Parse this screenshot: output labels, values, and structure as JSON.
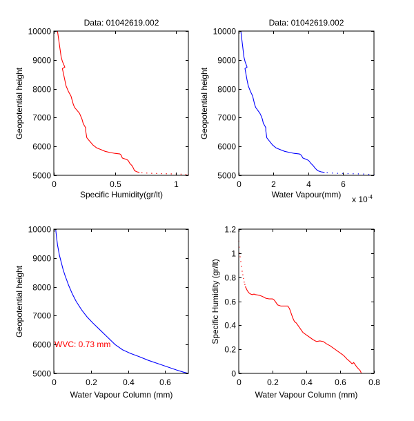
{
  "figure": {
    "background": "#ffffff"
  },
  "chart_data": [
    {
      "id": "top-left",
      "type": "line",
      "title": "Data: 01042619.002",
      "xlabel": "Specific Humidity(gr/lt)",
      "ylabel": "Geopotential height",
      "xlim": [
        0,
        1.1
      ],
      "ylim": [
        5000,
        10000
      ],
      "xticks": [
        0,
        0.5,
        1
      ],
      "xtick_labels": [
        "0",
        "0.5",
        "1"
      ],
      "yticks": [
        5000,
        6000,
        7000,
        8000,
        9000,
        10000
      ],
      "ytick_labels": [
        "5000",
        "6000",
        "7000",
        "8000",
        "9000",
        "10000"
      ],
      "x_exponent": "",
      "color": "#ff0000",
      "grid": false,
      "series": [
        {
          "name": "specific-humidity-profile",
          "x": [
            0.03,
            0.04,
            0.05,
            0.06,
            0.07,
            0.08,
            0.09,
            0.07,
            0.08,
            0.09,
            0.1,
            0.12,
            0.14,
            0.15,
            0.16,
            0.17,
            0.19,
            0.21,
            0.22,
            0.23,
            0.24,
            0.25,
            0.26,
            0.26,
            0.27,
            0.29,
            0.32,
            0.35,
            0.38,
            0.42,
            0.46,
            0.5,
            0.54,
            0.55,
            0.56,
            0.6,
            0.61,
            0.62,
            0.64,
            0.65,
            0.66,
            0.68,
            0.7
          ],
          "y": [
            10000,
            9700,
            9400,
            9100,
            8950,
            8850,
            8750,
            8700,
            8500,
            8300,
            8100,
            7900,
            7750,
            7600,
            7450,
            7350,
            7250,
            7150,
            7050,
            6950,
            6800,
            6720,
            6650,
            6550,
            6300,
            6200,
            6050,
            5950,
            5900,
            5830,
            5790,
            5760,
            5740,
            5700,
            5600,
            5540,
            5500,
            5420,
            5330,
            5250,
            5160,
            5120,
            5100
          ]
        },
        {
          "name": "specific-humidity-dotted-tail",
          "dotted": true,
          "x": [
            0.72,
            0.76,
            0.8,
            0.84,
            0.88,
            0.92,
            0.96,
            1.0,
            1.04,
            1.08,
            1.1
          ],
          "y": [
            5090,
            5080,
            5070,
            5065,
            5060,
            5055,
            5050,
            5045,
            5040,
            5030,
            5020
          ]
        }
      ]
    },
    {
      "id": "top-right",
      "type": "line",
      "title": "Data: 01042619.002",
      "xlabel": "Water Vapour(mm)",
      "ylabel": "Geopotential height",
      "xlim": [
        0,
        7.8
      ],
      "ylim": [
        5000,
        10000
      ],
      "xticks": [
        0,
        2,
        4,
        6
      ],
      "xtick_labels": [
        "0",
        "2",
        "4",
        "6"
      ],
      "yticks": [
        5000,
        6000,
        7000,
        8000,
        9000,
        10000
      ],
      "ytick_labels": [
        "5000",
        "6000",
        "7000",
        "8000",
        "9000",
        "10000"
      ],
      "x_exponent": "x 10",
      "x_exponent_power": "-4",
      "color": "#0000ff",
      "grid": false,
      "series": [
        {
          "name": "water-vapour-profile",
          "x": [
            0.12,
            0.18,
            0.24,
            0.3,
            0.36,
            0.42,
            0.48,
            0.36,
            0.42,
            0.48,
            0.55,
            0.68,
            0.8,
            0.86,
            0.92,
            0.98,
            1.1,
            1.22,
            1.3,
            1.36,
            1.42,
            1.5,
            1.56,
            1.56,
            1.62,
            1.75,
            1.95,
            2.15,
            2.35,
            2.65,
            2.95,
            3.2,
            3.5,
            3.6,
            3.7,
            3.95,
            4.05,
            4.15,
            4.3,
            4.4,
            4.55,
            4.75,
            4.95
          ],
          "y": [
            10000,
            9700,
            9400,
            9100,
            8950,
            8850,
            8750,
            8700,
            8500,
            8300,
            8100,
            7900,
            7750,
            7600,
            7450,
            7350,
            7250,
            7150,
            7050,
            6950,
            6800,
            6720,
            6650,
            6550,
            6300,
            6200,
            6050,
            5950,
            5900,
            5830,
            5790,
            5760,
            5740,
            5700,
            5600,
            5540,
            5500,
            5420,
            5330,
            5250,
            5160,
            5120,
            5100
          ]
        },
        {
          "name": "water-vapour-dotted-tail",
          "dotted": true,
          "x": [
            5.1,
            5.4,
            5.7,
            6.0,
            6.3,
            6.6,
            6.9,
            7.2,
            7.5,
            7.8
          ],
          "y": [
            5090,
            5080,
            5070,
            5065,
            5060,
            5055,
            5050,
            5045,
            5035,
            5020
          ]
        }
      ]
    },
    {
      "id": "bottom-left",
      "type": "line",
      "title": "",
      "xlabel": "Water Vapour Column (mm)",
      "ylabel": "Geopotential height",
      "xlim": [
        0,
        0.725
      ],
      "ylim": [
        5000,
        10000
      ],
      "xticks": [
        0,
        0.2,
        0.4,
        0.6
      ],
      "xtick_labels": [
        "0",
        "0.2",
        "0.4",
        "0.6"
      ],
      "yticks": [
        5000,
        6000,
        7000,
        8000,
        9000,
        10000
      ],
      "ytick_labels": [
        "5000",
        "6000",
        "7000",
        "8000",
        "9000",
        "10000"
      ],
      "x_exponent": "",
      "color": "#0000ff",
      "grid": false,
      "annotation": {
        "text": "WVC: 0.73 mm",
        "x": 0.0,
        "y": 6000,
        "color": "#ff0000"
      },
      "series": [
        {
          "name": "water-vapour-column",
          "x": [
            0.01,
            0.015,
            0.02,
            0.03,
            0.04,
            0.05,
            0.06,
            0.08,
            0.1,
            0.12,
            0.15,
            0.18,
            0.21,
            0.25,
            0.29,
            0.33,
            0.37,
            0.41,
            0.46,
            0.51,
            0.56,
            0.61,
            0.66,
            0.7,
            0.725
          ],
          "y": [
            10000,
            9700,
            9450,
            9100,
            8850,
            8600,
            8400,
            8050,
            7750,
            7500,
            7200,
            6950,
            6750,
            6500,
            6250,
            6000,
            5820,
            5700,
            5580,
            5450,
            5340,
            5230,
            5120,
            5040,
            5000
          ]
        }
      ]
    },
    {
      "id": "bottom-right",
      "type": "line",
      "title": "",
      "xlabel": "Water Vapour Column (mm)",
      "ylabel": "Specific Humidity (gr/lt)",
      "xlim": [
        0,
        0.8
      ],
      "ylim": [
        0,
        1.2
      ],
      "xticks": [
        0,
        0.2,
        0.4,
        0.6,
        0.8
      ],
      "xtick_labels": [
        "0",
        "0.2",
        "0.4",
        "0.6",
        "0.8"
      ],
      "yticks": [
        0,
        0.2,
        0.4,
        0.6,
        0.8,
        1,
        1.2
      ],
      "ytick_labels": [
        "0",
        "0.2",
        "0.4",
        "0.6",
        "0.8",
        "1",
        "1.2"
      ],
      "x_exponent": "",
      "color": "#ff0000",
      "grid": false,
      "series": [
        {
          "name": "humidity-vs-column-dotted-head",
          "dotted": true,
          "x": [
            0.0,
            0.002,
            0.004,
            0.008,
            0.012,
            0.016,
            0.02,
            0.024,
            0.028,
            0.032,
            0.036,
            0.04
          ],
          "y": [
            1.1,
            1.05,
            1.0,
            0.97,
            0.93,
            0.89,
            0.85,
            0.82,
            0.79,
            0.76,
            0.74,
            0.72
          ]
        },
        {
          "name": "humidity-vs-column",
          "x": [
            0.04,
            0.05,
            0.06,
            0.07,
            0.08,
            0.09,
            0.1,
            0.12,
            0.14,
            0.16,
            0.18,
            0.2,
            0.21,
            0.22,
            0.23,
            0.25,
            0.29,
            0.3,
            0.31,
            0.32,
            0.33,
            0.34,
            0.35,
            0.36,
            0.37,
            0.38,
            0.4,
            0.42,
            0.44,
            0.46,
            0.48,
            0.5,
            0.52,
            0.54,
            0.56,
            0.58,
            0.6,
            0.62,
            0.64,
            0.66,
            0.67,
            0.68,
            0.69,
            0.7,
            0.71,
            0.72,
            0.725
          ],
          "y": [
            0.72,
            0.69,
            0.67,
            0.66,
            0.655,
            0.66,
            0.655,
            0.65,
            0.64,
            0.625,
            0.62,
            0.62,
            0.61,
            0.59,
            0.57,
            0.56,
            0.56,
            0.54,
            0.5,
            0.46,
            0.43,
            0.42,
            0.4,
            0.38,
            0.36,
            0.34,
            0.32,
            0.3,
            0.28,
            0.265,
            0.27,
            0.265,
            0.245,
            0.23,
            0.21,
            0.19,
            0.17,
            0.15,
            0.12,
            0.095,
            0.08,
            0.09,
            0.07,
            0.05,
            0.035,
            0.02,
            0.0
          ]
        }
      ]
    }
  ]
}
